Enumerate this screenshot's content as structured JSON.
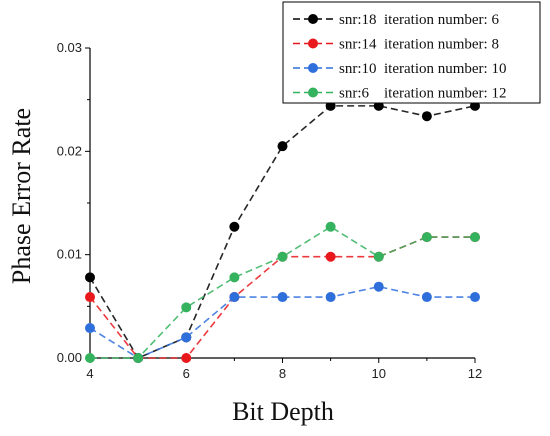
{
  "chart_data": {
    "type": "line",
    "xlabel": "Bit Depth",
    "ylabel": "Phase Error Rate",
    "xlim": [
      4,
      12
    ],
    "ylim": [
      0,
      0.03
    ],
    "xticks": [
      "4",
      "6",
      "8",
      "10",
      "12"
    ],
    "yticks": [
      "0.00",
      "0.01",
      "0.02",
      "0.03"
    ],
    "x": [
      4,
      5,
      6,
      7,
      8,
      9,
      10,
      11,
      12
    ],
    "legend_position": "top-right",
    "line_style": "dashed",
    "series": [
      {
        "name": "snr:18  iteration number: 6",
        "color": "#000000",
        "values": [
          0.0078,
          0.0,
          0.002,
          0.0127,
          0.0205,
          0.0244,
          0.0244,
          0.0234,
          0.0244
        ]
      },
      {
        "name": "snr:14  iteration number: 8",
        "color": "#e8181c",
        "values": [
          0.0059,
          0.0,
          0.0,
          0.0059,
          0.0098,
          0.0098,
          0.0098,
          0.0117,
          0.0117
        ]
      },
      {
        "name": "snr:10  iteration number: 10",
        "color": "#2e6fdc",
        "values": [
          0.0029,
          0.0,
          0.002,
          0.0059,
          0.0059,
          0.0059,
          0.0069,
          0.0059,
          0.0059
        ]
      },
      {
        "name": "snr:6    iteration number: 12",
        "color": "#34b25e",
        "values": [
          0.0,
          0.0,
          0.0049,
          0.0078,
          0.0098,
          0.0127,
          0.0098,
          0.0117,
          0.0117
        ]
      }
    ]
  }
}
